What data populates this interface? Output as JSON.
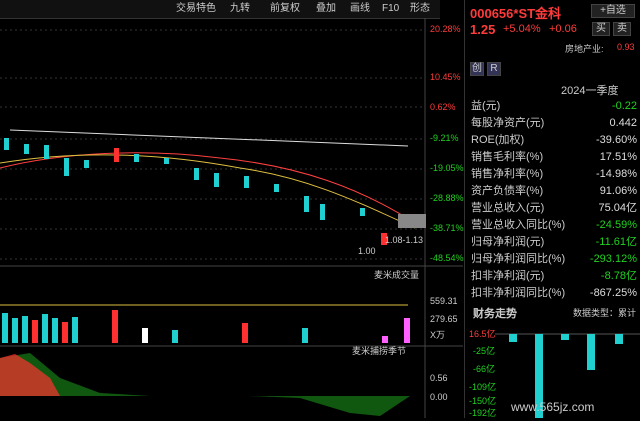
{
  "toolbar": {
    "items": [
      "交易特色",
      "九转",
      "前复权",
      "叠加",
      "画线",
      "F10",
      "形态"
    ]
  },
  "chart": {
    "price_axis": [
      "20.28%",
      "10.45%",
      "0.62%",
      "-9.21%",
      "-19.05%",
      "-28.88%",
      "-38.71%",
      "-48.54%"
    ],
    "price_annotations": [
      "1.08-1.13",
      "1.00"
    ],
    "volume_title": "麦米成交量",
    "volume_axis": [
      "559.31",
      "279.65",
      "X万"
    ],
    "indicator_title": "麦米捕捞季节",
    "indicator_axis": [
      "0.56",
      "0.00"
    ]
  },
  "quote": {
    "code": "000656",
    "name": "*ST金科",
    "add_button": "+自选",
    "price": "1.25",
    "change_pct": "+5.04%",
    "change": "+0.06",
    "buy": "买",
    "sell": "卖",
    "sector": "房地产业:",
    "sector_pct": "0.93",
    "period": "2024一季度",
    "tab1": "创",
    "tab2": "R"
  },
  "financials": [
    {
      "label": "益(元)",
      "value": "-0.22",
      "color": "green"
    },
    {
      "label": "每股净资产(元)",
      "value": "0.442",
      "color": "white"
    },
    {
      "label": "ROE(加权)",
      "value": "-39.60%",
      "color": "white"
    },
    {
      "label": "销售毛利率(%)",
      "value": "17.51%",
      "color": "white"
    },
    {
      "label": "销售净利率(%)",
      "value": "-14.98%",
      "color": "white"
    },
    {
      "label": "资产负债率(%)",
      "value": "91.06%",
      "color": "white"
    },
    {
      "label": "营业总收入(元)",
      "value": "75.04亿",
      "color": "white"
    },
    {
      "label": "营业总收入同比(%)",
      "value": "-24.59%",
      "color": "green"
    },
    {
      "label": "归母净利润(元)",
      "value": "-11.61亿",
      "color": "green"
    },
    {
      "label": "归母净利润同比(%)",
      "value": "-293.12%",
      "color": "green"
    },
    {
      "label": "扣非净利润(元)",
      "value": "-8.78亿",
      "color": "green"
    },
    {
      "label": "扣非净利润同比(%)",
      "value": "-867.25%",
      "color": "white"
    }
  ],
  "trend": {
    "title": "财务走势",
    "type_label": "数据类型：累计",
    "axis": [
      "16.5亿",
      "-25亿",
      "-66亿",
      "-109亿",
      "-150亿",
      "-192亿"
    ],
    "watermark": "www.565jz.com"
  }
}
